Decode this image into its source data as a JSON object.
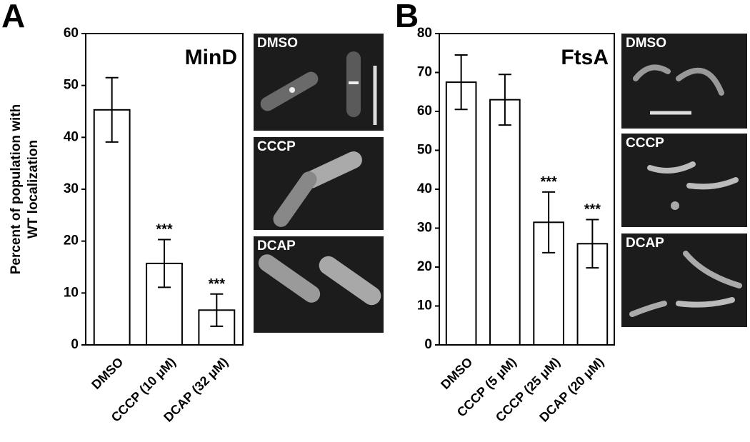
{
  "chart_data": [
    {
      "type": "bar",
      "panel": "A",
      "title": "MinD",
      "ylabel": [
        "Percent of population with",
        "WT localization"
      ],
      "categories": [
        "DMSO",
        "CCCP (10 μM)",
        "DCAP (32 μM)"
      ],
      "values": [
        45.3,
        15.7,
        6.7
      ],
      "errors": [
        6.2,
        4.6,
        3.1
      ],
      "annotations": [
        null,
        "***",
        "***"
      ],
      "color": "#ffffff",
      "ylim": [
        0,
        60
      ],
      "yticks": [
        0,
        10,
        20,
        30,
        40,
        50,
        60
      ],
      "images": [
        "DMSO",
        "CCCP",
        "DCAP"
      ]
    },
    {
      "type": "bar",
      "panel": "B",
      "title": "FtsA",
      "categories": [
        "DMSO",
        "CCCP (5 μM)",
        "CCCP (25 μM)",
        "DCAP (20 μM)"
      ],
      "values": [
        67.5,
        63,
        31.5,
        26
      ],
      "errors": [
        7,
        6.5,
        7.8,
        6.2
      ],
      "annotations": [
        null,
        null,
        "***",
        "***"
      ],
      "color": "#ffffff",
      "ylim": [
        0,
        80
      ],
      "yticks": [
        0,
        10,
        20,
        30,
        40,
        50,
        60,
        70,
        80
      ],
      "images": [
        "DMSO",
        "CCCP",
        "DCAP"
      ]
    }
  ]
}
